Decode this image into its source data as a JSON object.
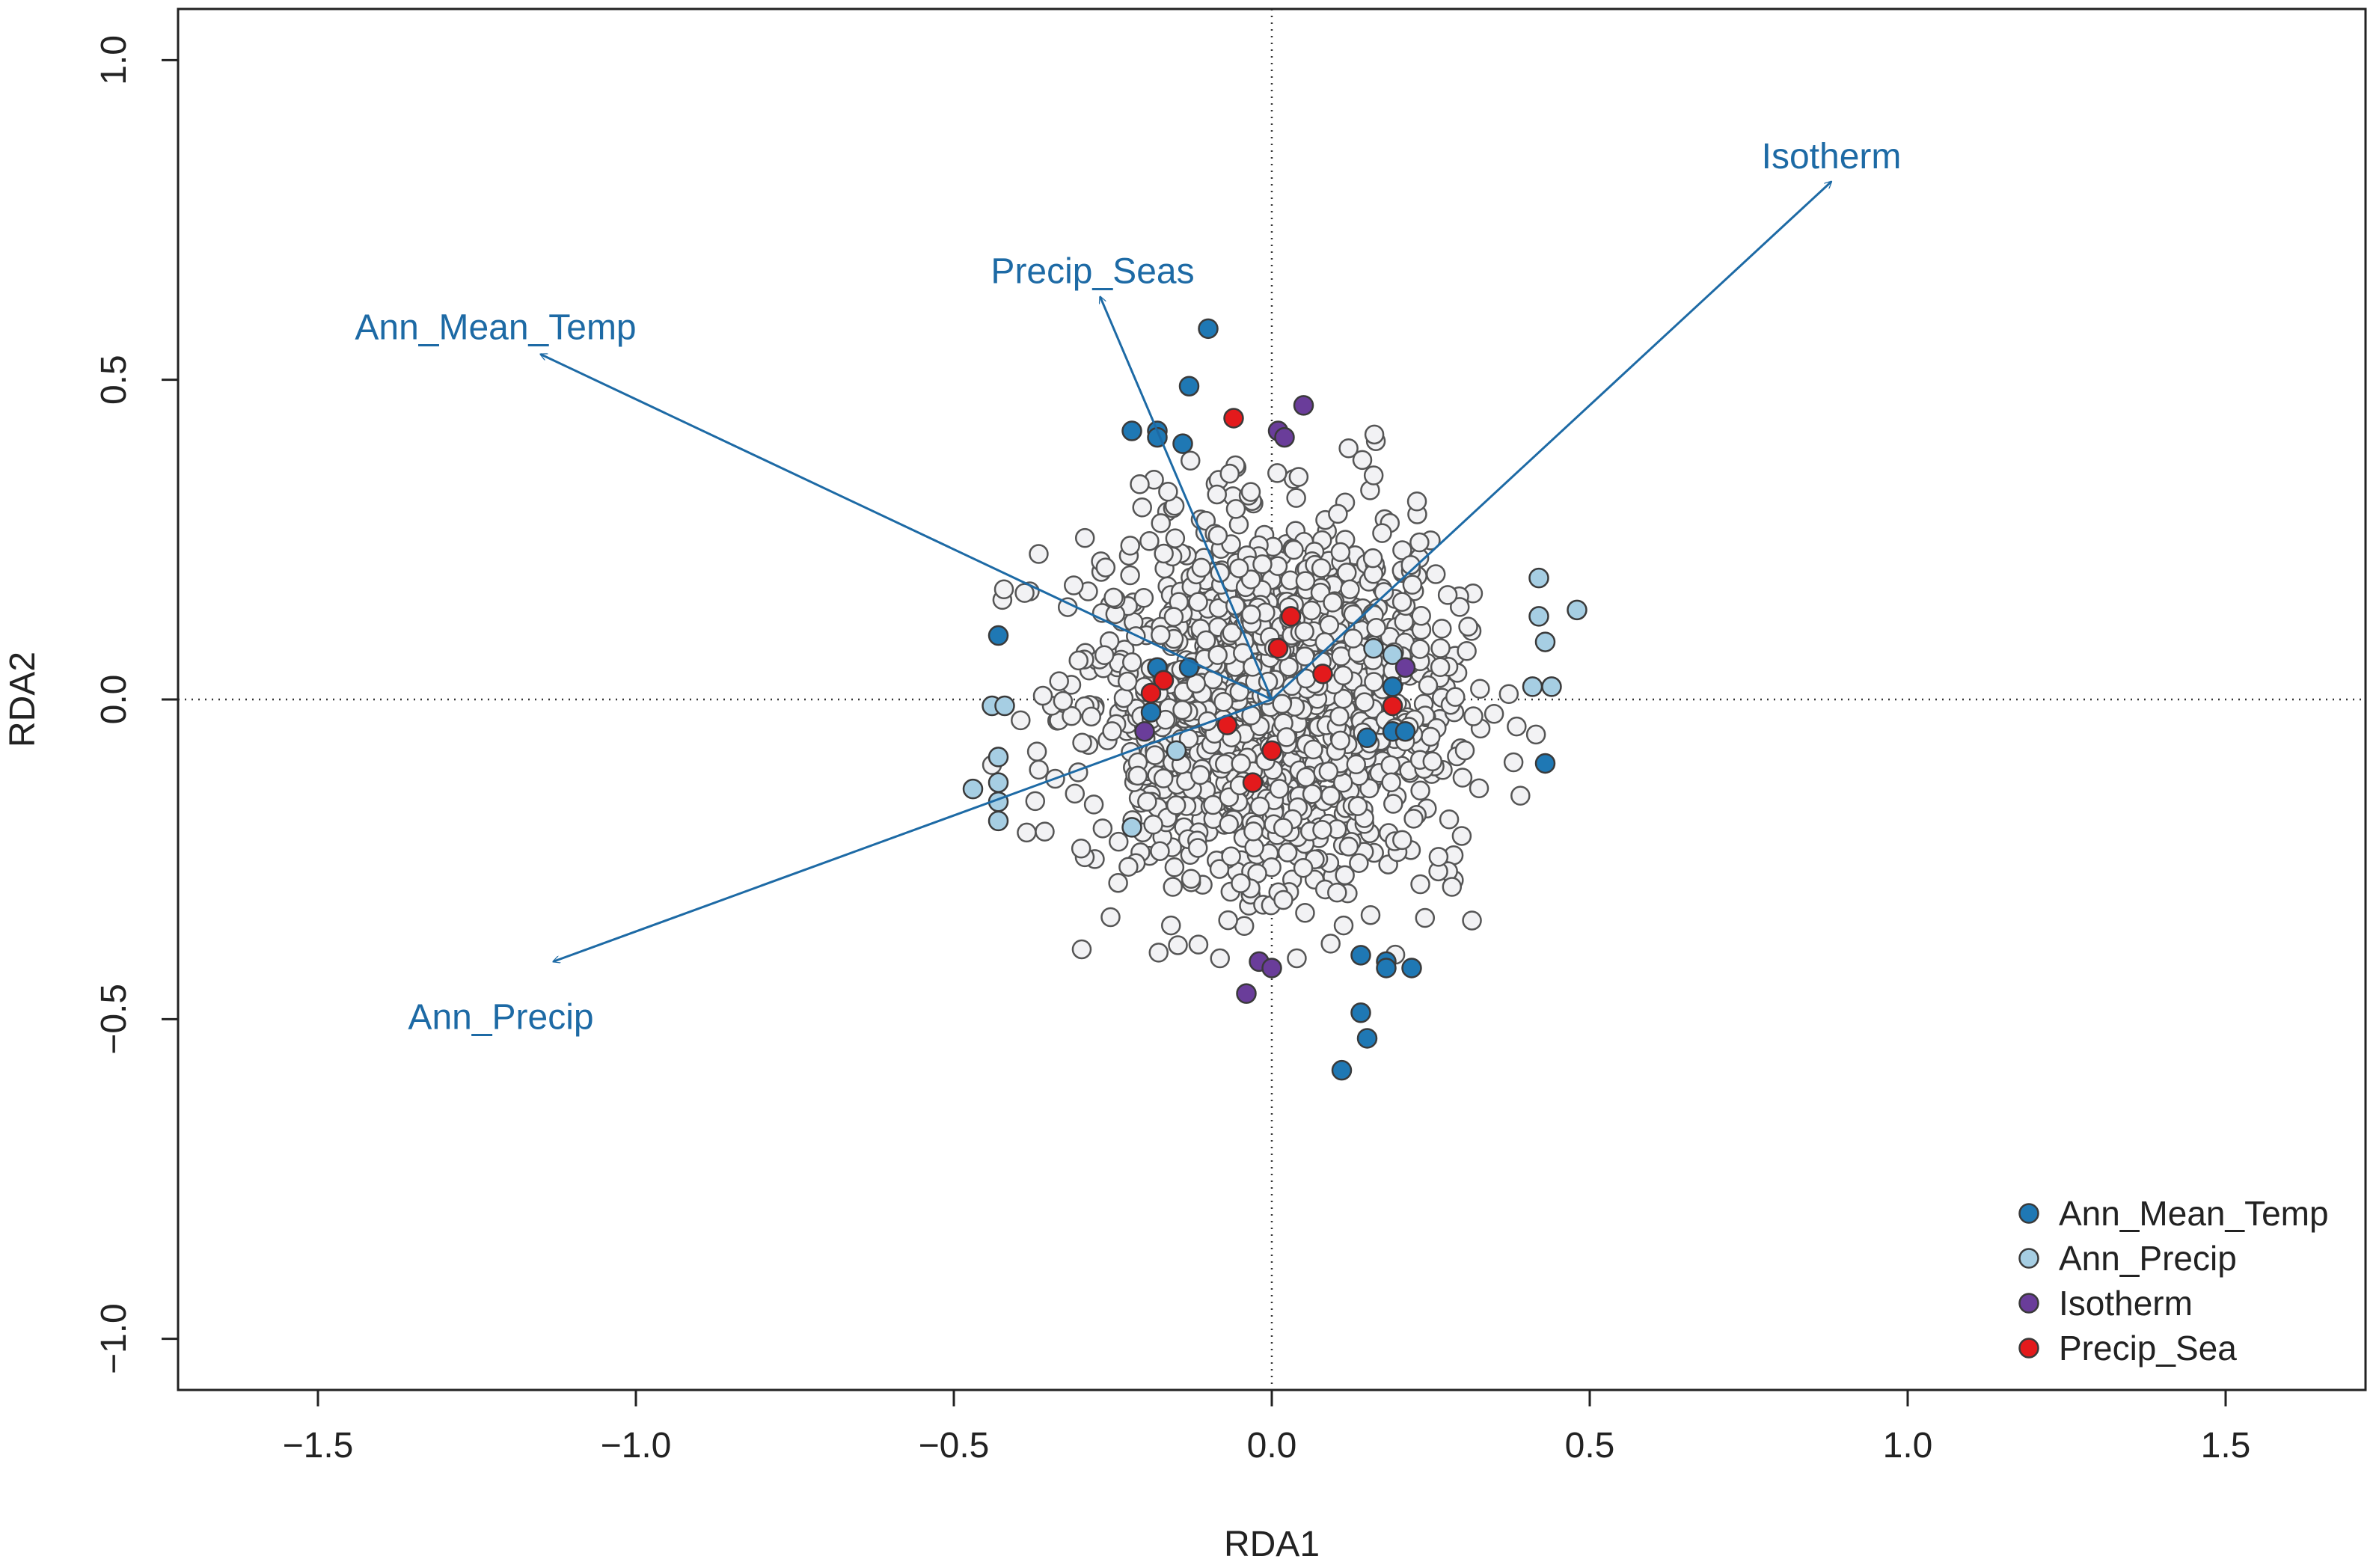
{
  "chart_data": {
    "type": "scatter",
    "title": "",
    "xlabel": "RDA1",
    "ylabel": "RDA2",
    "xlim": [
      -1.72,
      1.72
    ],
    "ylim": [
      -1.08,
      1.08
    ],
    "xticks": [
      -1.5,
      -1.0,
      -0.5,
      0.0,
      0.5,
      1.0,
      1.5
    ],
    "yticks": [
      -1.0,
      -0.5,
      0.0,
      0.5,
      1.0
    ],
    "xtick_labels": [
      "−1.5",
      "−1.0",
      "−0.5",
      "0.0",
      "0.5",
      "1.0",
      "1.5"
    ],
    "ytick_labels": [
      "−1.0",
      "−0.5",
      "0.0",
      "0.5",
      "1.0"
    ],
    "reference_lines": {
      "x": 0,
      "y": 0,
      "style": "dotted"
    },
    "grid": false,
    "legend_position": "bottom-right",
    "background_points": {
      "description_color": "#f2f2f4",
      "stroke": "#555555",
      "count": 1500,
      "center": [
        0.0,
        0.0
      ],
      "sd_x": 0.14,
      "sd_y": 0.135
    },
    "vectors": [
      {
        "label": "Isotherm",
        "x": 0.88,
        "y": 0.81,
        "color": "#1d6aa5"
      },
      {
        "label": "Precip_Seas",
        "x": -0.27,
        "y": 0.63,
        "color": "#1d6aa5"
      },
      {
        "label": "Ann_Mean_Temp",
        "x": -1.15,
        "y": 0.54,
        "color": "#1d6aa5"
      },
      {
        "label": "Ann_Precip",
        "x": -1.13,
        "y": -0.41,
        "color": "#1d6aa5"
      }
    ],
    "series": [
      {
        "name": "Ann_Mean_Temp",
        "color": "#1f78b4",
        "points": [
          [
            -0.1,
            0.58
          ],
          [
            -0.13,
            0.49
          ],
          [
            -0.22,
            0.42
          ],
          [
            -0.18,
            0.42
          ],
          [
            -0.18,
            0.41
          ],
          [
            -0.14,
            0.4
          ],
          [
            -0.43,
            0.1
          ],
          [
            -0.18,
            0.05
          ],
          [
            -0.13,
            0.05
          ],
          [
            -0.19,
            -0.02
          ],
          [
            0.19,
            0.02
          ],
          [
            0.15,
            -0.06
          ],
          [
            0.19,
            -0.05
          ],
          [
            0.21,
            -0.05
          ],
          [
            0.43,
            -0.1
          ],
          [
            0.14,
            -0.4
          ],
          [
            0.18,
            -0.41
          ],
          [
            0.18,
            -0.42
          ],
          [
            0.22,
            -0.42
          ],
          [
            0.14,
            -0.49
          ],
          [
            0.15,
            -0.53
          ],
          [
            0.11,
            -0.58
          ]
        ]
      },
      {
        "name": "Ann_Precip",
        "color": "#a6cee3",
        "points": [
          [
            0.42,
            0.19
          ],
          [
            0.48,
            0.14
          ],
          [
            0.42,
            0.13
          ],
          [
            0.43,
            0.09
          ],
          [
            0.41,
            0.02
          ],
          [
            0.44,
            0.02
          ],
          [
            0.16,
            0.08
          ],
          [
            0.19,
            0.07
          ],
          [
            -0.44,
            -0.01
          ],
          [
            -0.42,
            -0.01
          ],
          [
            -0.43,
            -0.09
          ],
          [
            -0.43,
            -0.13
          ],
          [
            -0.47,
            -0.14
          ],
          [
            -0.43,
            -0.16
          ],
          [
            -0.43,
            -0.19
          ],
          [
            -0.22,
            -0.2
          ],
          [
            -0.15,
            -0.08
          ]
        ]
      },
      {
        "name": "Isotherm",
        "color": "#6a3d9a",
        "points": [
          [
            0.05,
            0.46
          ],
          [
            0.01,
            0.42
          ],
          [
            0.02,
            0.41
          ],
          [
            0.21,
            0.05
          ],
          [
            -0.2,
            -0.05
          ],
          [
            -0.02,
            -0.41
          ],
          [
            0.0,
            -0.42
          ],
          [
            -0.04,
            -0.46
          ]
        ]
      },
      {
        "name": "Precip_Sea",
        "color": "#e31a1c",
        "points": [
          [
            -0.06,
            0.44
          ],
          [
            0.03,
            0.13
          ],
          [
            0.01,
            0.08
          ],
          [
            0.08,
            0.04
          ],
          [
            -0.17,
            0.03
          ],
          [
            -0.19,
            0.01
          ],
          [
            0.19,
            -0.01
          ],
          [
            -0.07,
            -0.04
          ],
          [
            0.0,
            -0.08
          ],
          [
            -0.03,
            -0.13
          ]
        ]
      }
    ]
  },
  "legend": {
    "items": [
      {
        "label": "Ann_Mean_Temp",
        "color": "#1f78b4"
      },
      {
        "label": "Ann_Precip",
        "color": "#a6cee3"
      },
      {
        "label": "Isotherm",
        "color": "#6a3d9a"
      },
      {
        "label": "Precip_Sea",
        "color": "#e31a1c"
      }
    ]
  }
}
